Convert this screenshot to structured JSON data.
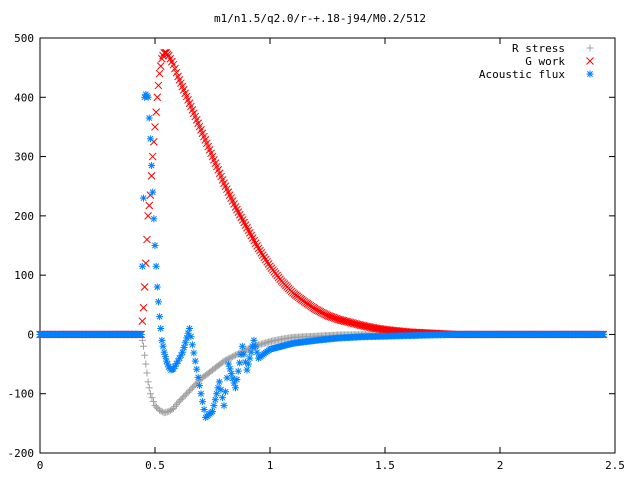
{
  "chart_data": {
    "type": "scatter",
    "title": "m1/n1.5/q2.0/r-+.18-j94/M0.2/512",
    "xlabel": "",
    "ylabel": "",
    "xlim": [
      0,
      2.5
    ],
    "ylim": [
      -200,
      500
    ],
    "x_ticks": [
      "0",
      "0.5",
      "1",
      "1.5",
      "2",
      "2.5"
    ],
    "y_ticks": [
      "-200",
      "-100",
      "0",
      "100",
      "200",
      "300",
      "400",
      "500"
    ],
    "grid": false,
    "legend_position": "top-right",
    "series": [
      {
        "name": "R stress",
        "marker": "plus",
        "color": "#a0a0a0",
        "points": [
          [
            0.0,
            0
          ],
          [
            0.1,
            0
          ],
          [
            0.2,
            0
          ],
          [
            0.3,
            0
          ],
          [
            0.4,
            0
          ],
          [
            0.44,
            0
          ],
          [
            0.45,
            -20
          ],
          [
            0.46,
            -50
          ],
          [
            0.47,
            -80
          ],
          [
            0.48,
            -100
          ],
          [
            0.5,
            -120
          ],
          [
            0.52,
            -128
          ],
          [
            0.54,
            -132
          ],
          [
            0.56,
            -130
          ],
          [
            0.58,
            -125
          ],
          [
            0.6,
            -115
          ],
          [
            0.65,
            -95
          ],
          [
            0.7,
            -75
          ],
          [
            0.75,
            -60
          ],
          [
            0.8,
            -45
          ],
          [
            0.85,
            -35
          ],
          [
            0.9,
            -25
          ],
          [
            0.95,
            -18
          ],
          [
            1.0,
            -12
          ],
          [
            1.05,
            -8
          ],
          [
            1.1,
            -5
          ],
          [
            1.2,
            -3
          ],
          [
            1.3,
            -1
          ],
          [
            1.5,
            0
          ],
          [
            1.7,
            0
          ],
          [
            2.0,
            0
          ],
          [
            2.3,
            0
          ],
          [
            2.45,
            0
          ]
        ]
      },
      {
        "name": "G work",
        "marker": "cross",
        "color": "#ff0000",
        "points": [
          [
            0.0,
            0
          ],
          [
            0.1,
            0
          ],
          [
            0.2,
            0
          ],
          [
            0.3,
            0
          ],
          [
            0.4,
            0
          ],
          [
            0.44,
            0
          ],
          [
            0.45,
            45
          ],
          [
            0.455,
            80
          ],
          [
            0.46,
            120
          ],
          [
            0.465,
            160
          ],
          [
            0.47,
            200
          ],
          [
            0.48,
            235
          ],
          [
            0.49,
            300
          ],
          [
            0.5,
            350
          ],
          [
            0.51,
            400
          ],
          [
            0.52,
            440
          ],
          [
            0.53,
            465
          ],
          [
            0.54,
            475
          ],
          [
            0.55,
            475
          ],
          [
            0.56,
            470
          ],
          [
            0.58,
            455
          ],
          [
            0.6,
            435
          ],
          [
            0.65,
            390
          ],
          [
            0.7,
            345
          ],
          [
            0.75,
            300
          ],
          [
            0.8,
            255
          ],
          [
            0.85,
            215
          ],
          [
            0.9,
            180
          ],
          [
            0.95,
            145
          ],
          [
            1.0,
            115
          ],
          [
            1.05,
            90
          ],
          [
            1.1,
            70
          ],
          [
            1.15,
            55
          ],
          [
            1.2,
            42
          ],
          [
            1.25,
            32
          ],
          [
            1.3,
            25
          ],
          [
            1.35,
            20
          ],
          [
            1.4,
            15
          ],
          [
            1.45,
            11
          ],
          [
            1.5,
            8
          ],
          [
            1.55,
            6
          ],
          [
            1.6,
            4
          ],
          [
            1.65,
            3
          ],
          [
            1.7,
            2
          ],
          [
            1.75,
            1
          ],
          [
            1.8,
            0
          ],
          [
            2.0,
            0
          ],
          [
            2.2,
            0
          ],
          [
            2.45,
            0
          ]
        ]
      },
      {
        "name": "Acoustic flux",
        "marker": "star",
        "color": "#0080ff",
        "points": [
          [
            0.0,
            0
          ],
          [
            0.1,
            0
          ],
          [
            0.2,
            0
          ],
          [
            0.3,
            0
          ],
          [
            0.4,
            0
          ],
          [
            0.44,
            0
          ],
          [
            0.45,
            230
          ],
          [
            0.455,
            400
          ],
          [
            0.46,
            405
          ],
          [
            0.47,
            400
          ],
          [
            0.48,
            330
          ],
          [
            0.49,
            240
          ],
          [
            0.5,
            150
          ],
          [
            0.51,
            80
          ],
          [
            0.52,
            30
          ],
          [
            0.53,
            -10
          ],
          [
            0.54,
            -30
          ],
          [
            0.55,
            -45
          ],
          [
            0.56,
            -55
          ],
          [
            0.57,
            -60
          ],
          [
            0.58,
            -58
          ],
          [
            0.6,
            -45
          ],
          [
            0.62,
            -30
          ],
          [
            0.65,
            10
          ],
          [
            0.7,
            -100
          ],
          [
            0.72,
            -140
          ],
          [
            0.75,
            -130
          ],
          [
            0.78,
            -80
          ],
          [
            0.8,
            -120
          ],
          [
            0.82,
            -50
          ],
          [
            0.85,
            -90
          ],
          [
            0.88,
            -20
          ],
          [
            0.9,
            -60
          ],
          [
            0.93,
            -10
          ],
          [
            0.95,
            -40
          ],
          [
            1.0,
            -25
          ],
          [
            1.05,
            -20
          ],
          [
            1.1,
            -15
          ],
          [
            1.2,
            -10
          ],
          [
            1.3,
            -6
          ],
          [
            1.4,
            -4
          ],
          [
            1.5,
            -3
          ],
          [
            1.6,
            -2
          ],
          [
            1.7,
            -1
          ],
          [
            1.8,
            0
          ],
          [
            2.0,
            0
          ],
          [
            2.2,
            0
          ],
          [
            2.45,
            0
          ]
        ]
      }
    ]
  }
}
